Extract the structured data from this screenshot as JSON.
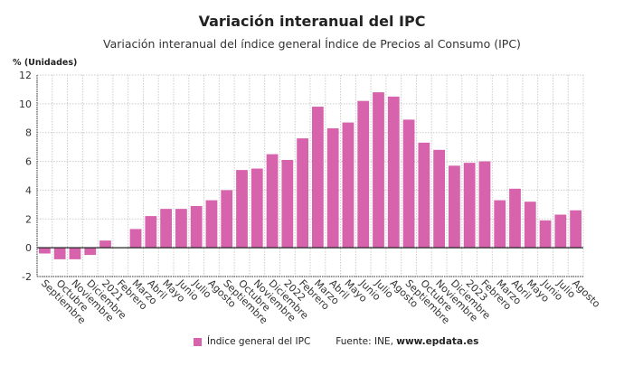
{
  "chart_data": {
    "type": "bar",
    "title": "Variación interanual del IPC",
    "subtitle": "Variación interanual del índice general Índice de Precios al Consumo (IPC)",
    "ylabel": "% (Unidades)",
    "xlabel": "",
    "ylim": [
      -2,
      12
    ],
    "yticks": [
      -2,
      0,
      2,
      4,
      6,
      8,
      10,
      12
    ],
    "grid": true,
    "legend_position": "bottom",
    "categories": [
      "Septiembre",
      "Octubre",
      "Noviembre",
      "Diciembre",
      "2021",
      "Febrero",
      "Marzo",
      "Abril",
      "Mayo",
      "Junio",
      "Julio",
      "Agosto",
      "Septiembre",
      "Octubre",
      "Noviembre",
      "Diciembre",
      "2022",
      "Febrero",
      "Marzo",
      "Abril",
      "Mayo",
      "Junio",
      "Julio",
      "Agosto",
      "Septiembre",
      "Octubre",
      "Noviembre",
      "Diciembre",
      "2023",
      "Febrero",
      "Marzo",
      "Abril",
      "Mayo",
      "Junio",
      "Julio",
      "Agosto"
    ],
    "series": [
      {
        "name": "Índice general del IPC",
        "color": "#d863ad",
        "values": [
          -0.4,
          -0.8,
          -0.8,
          -0.5,
          0.5,
          0.0,
          1.3,
          2.2,
          2.7,
          2.7,
          2.9,
          3.3,
          4.0,
          5.4,
          5.5,
          6.5,
          6.1,
          7.6,
          9.8,
          8.3,
          8.7,
          10.2,
          10.8,
          10.5,
          8.9,
          7.3,
          6.8,
          5.7,
          5.9,
          6.0,
          3.3,
          4.1,
          3.2,
          1.9,
          2.3,
          2.6
        ]
      }
    ],
    "source_label": "Fuente: INE, ",
    "source_site": "www.epdata.es"
  }
}
